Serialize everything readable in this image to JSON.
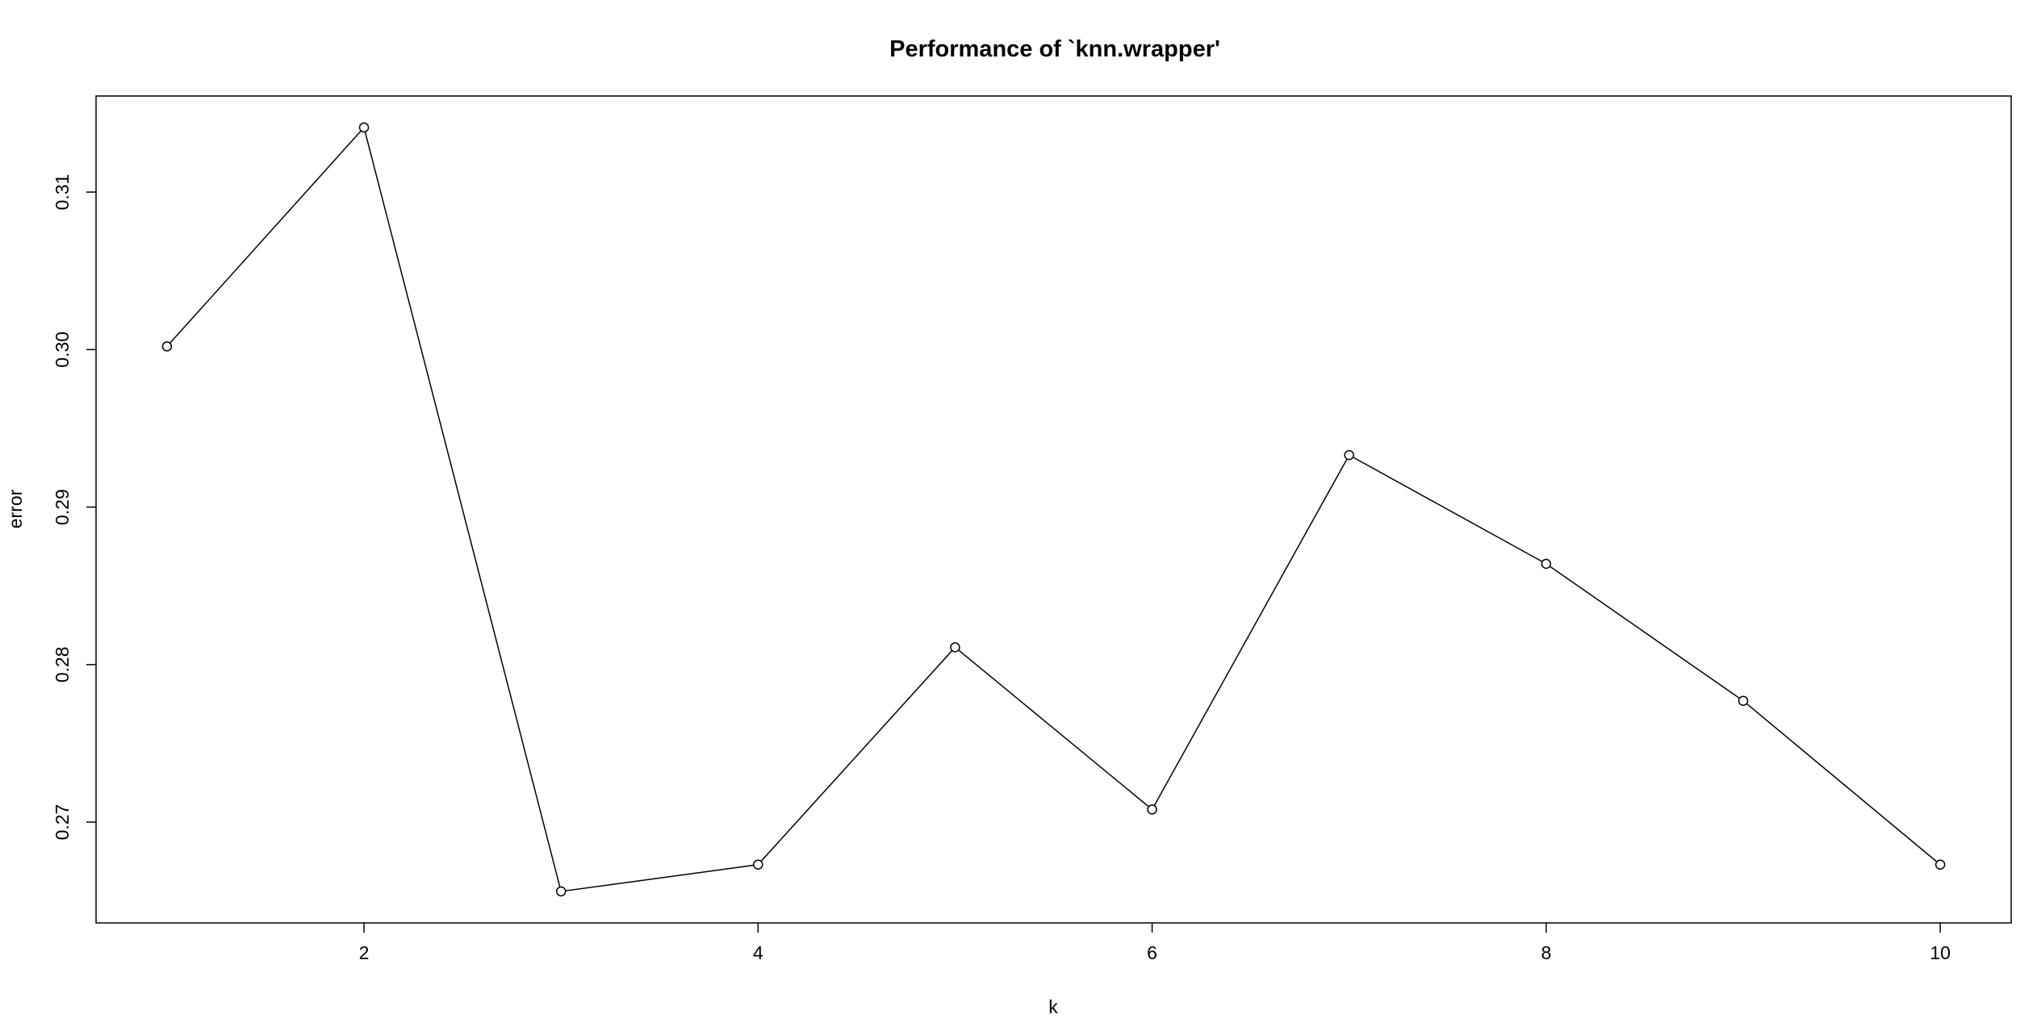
{
  "chart_data": {
    "type": "line",
    "title": "Performance of `knn.wrapper'",
    "xlabel": "k",
    "ylabel": "error",
    "x": [
      1,
      2,
      3,
      4,
      5,
      6,
      7,
      8,
      9,
      10
    ],
    "series": [
      {
        "values": [
          0.3002,
          0.3141,
          0.2656,
          0.2673,
          0.2811,
          0.2708,
          0.2933,
          0.2864,
          0.2777,
          0.2673
        ]
      }
    ],
    "xticks": [
      "2",
      "4",
      "6",
      "8",
      "10"
    ],
    "yticks": [
      "0.27",
      "0.28",
      "0.29",
      "0.30",
      "0.31"
    ],
    "xlim": [
      0.64,
      10.36
    ],
    "ylim": [
      0.2636,
      0.3161
    ],
    "grid": false,
    "line_color": "#000000",
    "marker": "open-circle"
  }
}
